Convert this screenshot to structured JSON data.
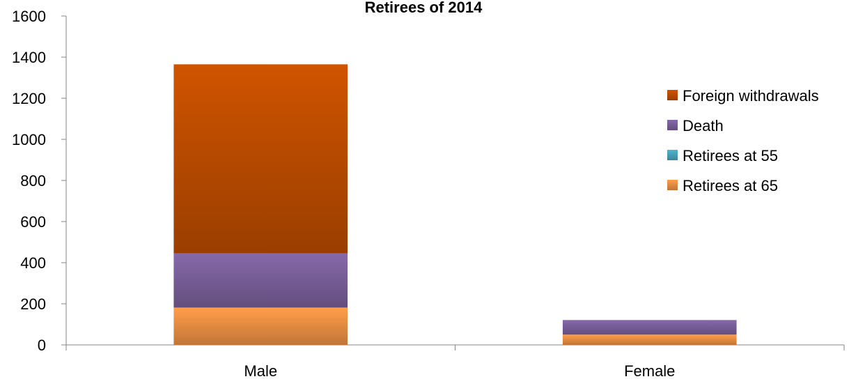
{
  "chart_data": {
    "type": "bar",
    "stacked": true,
    "title": "Retirees of 2014",
    "xlabel": "",
    "ylabel": "",
    "categories": [
      "Male",
      "Female"
    ],
    "ylim": [
      0,
      1600
    ],
    "yticks": [
      0,
      200,
      400,
      600,
      800,
      1000,
      1200,
      1400,
      1600
    ],
    "grid": false,
    "legend_position": "right",
    "series": [
      {
        "name": "Retirees at 65",
        "values": [
          180,
          50
        ],
        "color": "#f79646"
      },
      {
        "name": "Retirees at 55",
        "values": [
          3,
          0
        ],
        "color": "#4bacc6"
      },
      {
        "name": "Death",
        "values": [
          262,
          71
        ],
        "color": "#8064a2"
      },
      {
        "name": "Foreign withdrawals",
        "values": [
          920,
          0
        ],
        "color": "#c65000"
      }
    ]
  }
}
